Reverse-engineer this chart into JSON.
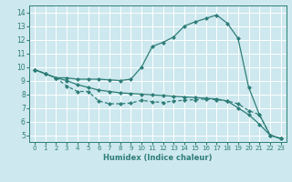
{
  "xlabel": "Humidex (Indice chaleur)",
  "xlim": [
    -0.5,
    23.5
  ],
  "ylim": [
    4.5,
    14.5
  ],
  "yticks": [
    5,
    6,
    7,
    8,
    9,
    10,
    11,
    12,
    13,
    14
  ],
  "xticks": [
    0,
    1,
    2,
    3,
    4,
    5,
    6,
    7,
    8,
    9,
    10,
    11,
    12,
    13,
    14,
    15,
    16,
    17,
    18,
    19,
    20,
    21,
    22,
    23
  ],
  "bg_color": "#cde8ee",
  "grid_color": "#ffffff",
  "line_color": "#2e7d78",
  "line1_x": [
    0,
    1,
    2,
    3,
    4,
    5,
    6,
    7,
    8,
    9,
    10,
    11,
    12,
    13,
    14,
    15,
    16,
    17,
    18,
    19,
    20,
    21,
    22,
    23
  ],
  "line1_y": [
    9.8,
    9.5,
    9.2,
    9.2,
    9.1,
    9.1,
    9.1,
    9.05,
    9.0,
    9.1,
    10.0,
    11.5,
    11.8,
    12.2,
    13.0,
    13.3,
    13.55,
    13.8,
    13.2,
    12.1,
    8.5,
    6.5,
    5.0,
    4.75
  ],
  "line2_x": [
    0,
    1,
    2,
    3,
    4,
    5,
    6,
    7,
    8,
    9,
    10,
    11,
    12,
    13,
    14,
    15,
    16,
    17,
    18,
    19,
    20,
    21,
    22,
    23
  ],
  "line2_y": [
    9.8,
    9.5,
    9.2,
    9.0,
    8.7,
    8.5,
    8.3,
    8.2,
    8.1,
    8.05,
    8.0,
    7.95,
    7.9,
    7.85,
    7.8,
    7.75,
    7.7,
    7.65,
    7.5,
    7.0,
    6.5,
    5.8,
    5.0,
    4.75
  ],
  "line3_x": [
    0,
    1,
    2,
    3,
    4,
    5,
    6,
    7,
    8,
    9,
    10,
    11,
    12,
    13,
    14,
    15,
    16,
    17,
    18,
    19,
    20,
    21,
    22,
    23
  ],
  "line3_y": [
    9.8,
    9.5,
    9.2,
    8.6,
    8.2,
    8.2,
    7.5,
    7.3,
    7.3,
    7.35,
    7.55,
    7.45,
    7.4,
    7.5,
    7.55,
    7.6,
    7.65,
    7.6,
    7.5,
    7.3,
    6.8,
    6.5,
    5.0,
    4.75
  ],
  "line3_dashed": true
}
